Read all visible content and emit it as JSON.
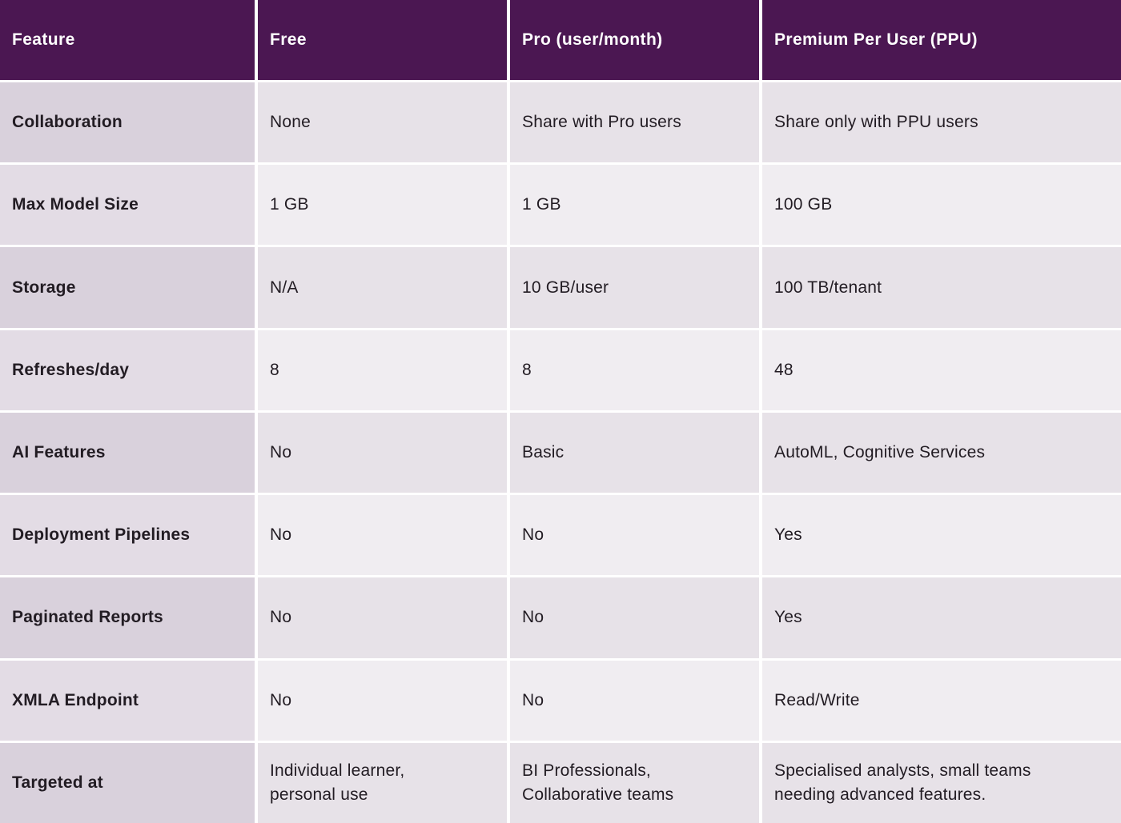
{
  "header": {
    "cells": [
      "Feature",
      "Free",
      "Pro (user/month)",
      "Premium Per User (PPU)"
    ]
  },
  "rows": [
    {
      "cells": [
        "Collaboration",
        "None",
        "Share with Pro users",
        "Share only with PPU users"
      ]
    },
    {
      "cells": [
        "Max Model Size",
        "1 GB",
        "1 GB",
        "100 GB"
      ]
    },
    {
      "cells": [
        "Storage",
        "N/A",
        "10 GB/user",
        "100 TB/tenant"
      ]
    },
    {
      "cells": [
        "Refreshes/day",
        "8",
        "8",
        "48"
      ]
    },
    {
      "cells": [
        "AI Features",
        "No",
        "Basic",
        "AutoML, Cognitive Services"
      ]
    },
    {
      "cells": [
        "Deployment Pipelines",
        "No",
        "No",
        "Yes"
      ]
    },
    {
      "cells": [
        "Paginated Reports",
        "No",
        "No",
        "Yes"
      ]
    },
    {
      "cells": [
        "XMLA Endpoint",
        "No",
        "No",
        "Read/Write"
      ]
    },
    {
      "cells": [
        "Targeted at",
        "Individual learner, personal use",
        "BI Professionals, Collaborative teams",
        "Specialised analysts, small teams needing advanced features."
      ]
    }
  ],
  "colors": {
    "header_bg": "#4B1752",
    "header_text": "#FFFFFF",
    "label_col_bg_a": "#D9D1DC",
    "label_col_bg_b": "#E3DCE5",
    "data_bg_a": "#E7E2E8",
    "data_bg_b": "#F0EDF1",
    "grid_line": "#FFFFFF",
    "text": "#221C23"
  }
}
